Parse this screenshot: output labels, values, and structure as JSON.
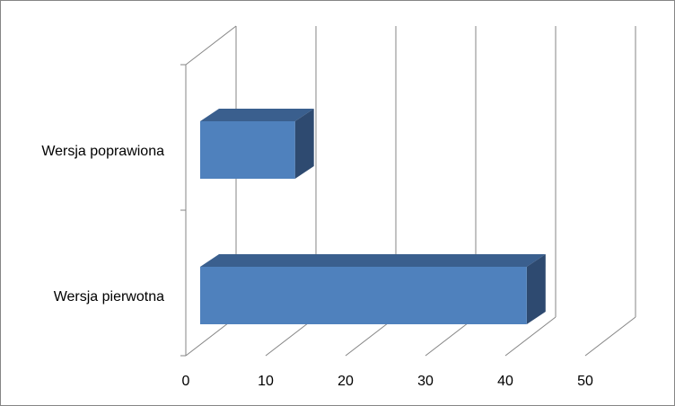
{
  "chart_data": {
    "type": "bar",
    "orientation": "horizontal",
    "style": "3d",
    "title": "",
    "xlabel": "",
    "ylabel": "",
    "categories": [
      "Wersja poprawiona",
      "Wersja pierwotna"
    ],
    "values": [
      13,
      42
    ],
    "xlim": [
      0,
      50
    ],
    "x_ticks": [
      "0",
      "10",
      "20",
      "30",
      "40",
      "50"
    ],
    "grid": true,
    "legend": "none",
    "colors": {
      "bar_front": "#4F81BD",
      "bar_top": "#3A5F8E",
      "bar_side": "#2E4A70",
      "grid": "#868686",
      "border": "#868686"
    }
  }
}
